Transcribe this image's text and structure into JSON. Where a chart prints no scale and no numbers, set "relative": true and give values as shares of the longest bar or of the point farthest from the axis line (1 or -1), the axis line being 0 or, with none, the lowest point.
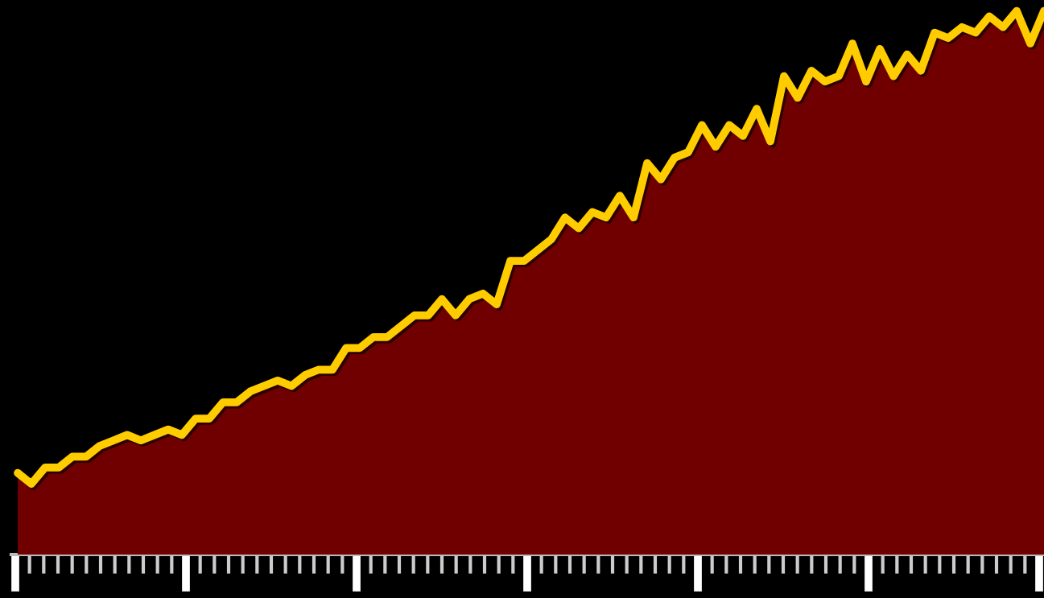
{
  "chart_data": {
    "type": "area",
    "relative": true,
    "categories": [
      null,
      null,
      null,
      null,
      null,
      null,
      null,
      null,
      null,
      null,
      null,
      null,
      null,
      null,
      null,
      null,
      null,
      null,
      null,
      null,
      null,
      null,
      null,
      null,
      null,
      null,
      null,
      null,
      null,
      null,
      null,
      null,
      null,
      null,
      null,
      null,
      null,
      null,
      null,
      null,
      null,
      null,
      null,
      null,
      null,
      null,
      null,
      null,
      null,
      null,
      null,
      null,
      null,
      null,
      null,
      null,
      null,
      null,
      null,
      null,
      null,
      null,
      null,
      null,
      null,
      null,
      null,
      null,
      null,
      null,
      null,
      null,
      null,
      null,
      null,
      null
    ],
    "series": [
      {
        "color": "#ffcc00",
        "values": [
          0.15,
          0.13,
          0.16,
          0.16,
          0.18,
          0.18,
          0.2,
          0.21,
          0.22,
          0.21,
          0.22,
          0.23,
          0.22,
          0.25,
          0.25,
          0.28,
          0.28,
          0.3,
          0.31,
          0.32,
          0.31,
          0.33,
          0.34,
          0.34,
          0.38,
          0.38,
          0.4,
          0.4,
          0.42,
          0.44,
          0.44,
          0.47,
          0.44,
          0.47,
          0.48,
          0.46,
          0.54,
          0.54,
          0.56,
          0.58,
          0.62,
          0.6,
          0.63,
          0.62,
          0.66,
          0.62,
          0.72,
          0.69,
          0.73,
          0.74,
          0.79,
          0.75,
          0.79,
          0.77,
          0.82,
          0.76,
          0.88,
          0.84,
          0.89,
          0.87,
          0.88,
          0.94,
          0.87,
          0.93,
          0.88,
          0.92,
          0.89,
          0.96,
          0.95,
          0.97,
          0.96,
          0.99,
          0.97,
          1,
          0.94,
          1
        ]
      }
    ],
    "marker": "none",
    "line_style": "solid"
  }
}
